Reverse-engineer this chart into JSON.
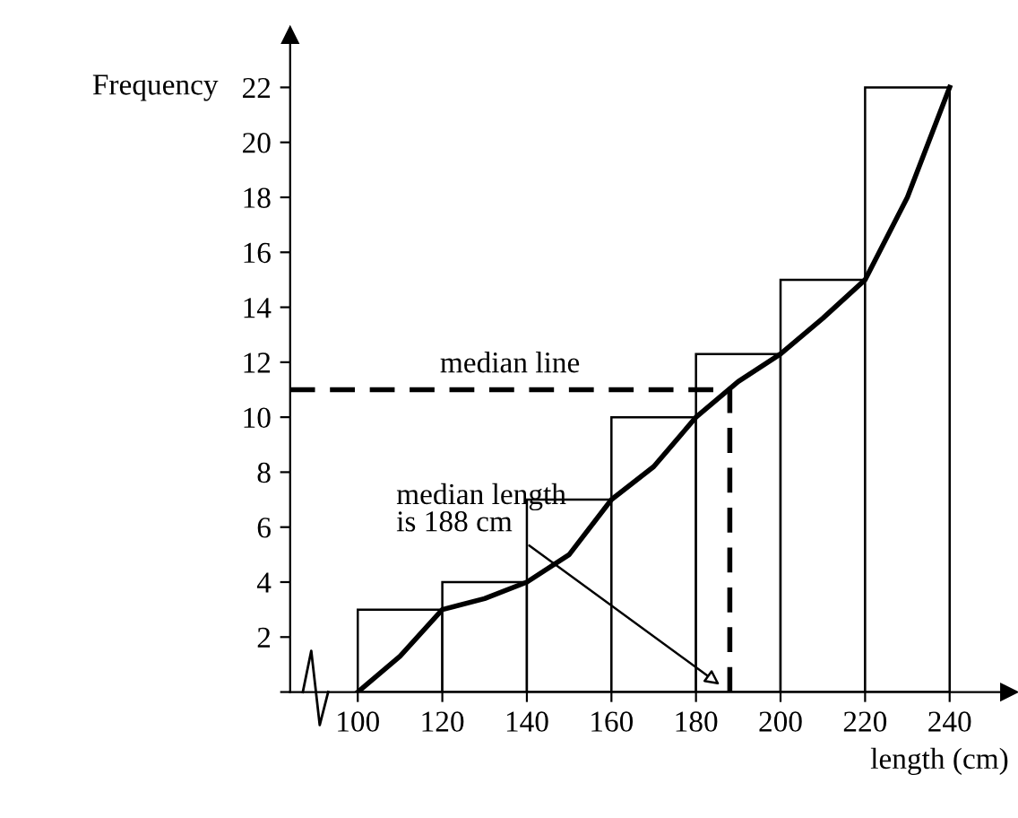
{
  "chart_data": {
    "type": "histogram",
    "xlabel": "length (cm)",
    "ylabel": "Frequency",
    "bins": [
      100,
      120,
      140,
      160,
      180,
      200,
      220,
      240
    ],
    "values": [
      3,
      4,
      7,
      10,
      12.3,
      15,
      22
    ],
    "color": "#ffffff",
    "series": [
      {
        "type": "line",
        "color": "#000000",
        "x": [
          100,
          110,
          120,
          130,
          140,
          150,
          160,
          170,
          180,
          190,
          200,
          210,
          220,
          230,
          240
        ],
        "values": [
          0,
          1.3,
          3,
          3.4,
          4,
          5,
          7,
          8.2,
          10,
          11.3,
          12.3,
          13.6,
          15,
          18,
          22
        ]
      }
    ],
    "ref_lines": [
      {
        "axis": "y",
        "value": 11,
        "label": "median line",
        "line_style": "dashed",
        "color": "#000000"
      },
      {
        "axis": "x",
        "value": 188,
        "label": null,
        "line_style": "dashed",
        "color": "#000000"
      }
    ],
    "annotations": [
      "median length\nis 188 cm"
    ],
    "xlim": [
      84,
      254
    ],
    "ylim": [
      0,
      23.9
    ],
    "xticks": [
      100,
      120,
      140,
      160,
      180,
      200,
      220,
      240
    ],
    "yticks": [
      {
        "value": 0,
        "label": null
      },
      2,
      4,
      6,
      8,
      10,
      12,
      14,
      16,
      18,
      20,
      22
    ],
    "grid": false
  }
}
